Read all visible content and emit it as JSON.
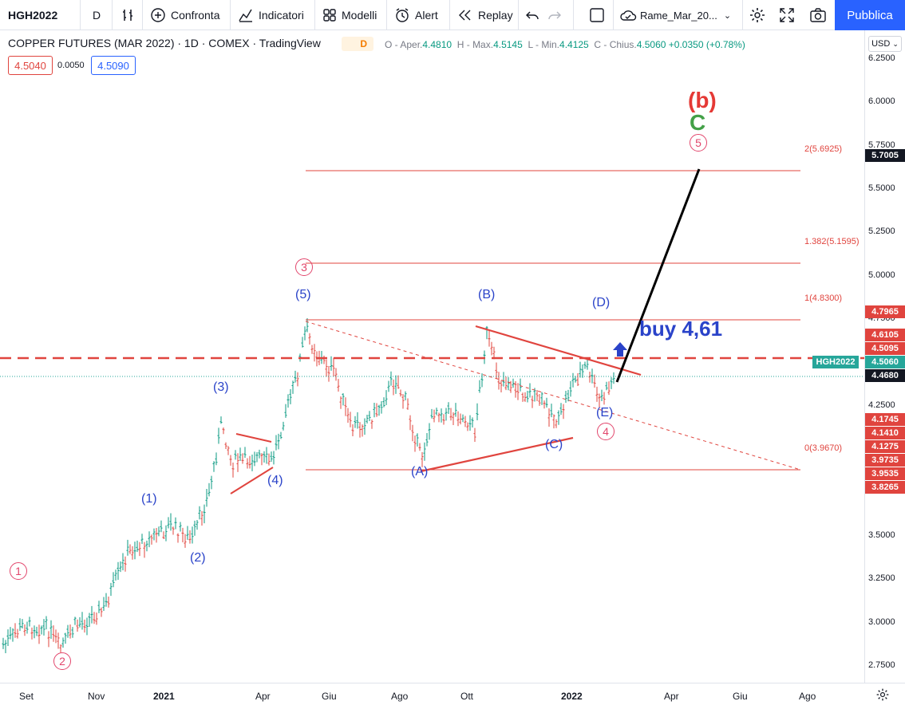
{
  "toolbar": {
    "symbol": "HGH2022",
    "interval": "D",
    "compare": "Confronta",
    "indicators": "Indicatori",
    "templates": "Modelli",
    "alert": "Alert",
    "replay": "Replay",
    "layout_name": "Rame_Mar_20...",
    "publish": "Pubblica"
  },
  "legend": {
    "title": "COPPER FUTURES (MAR 2022) · 1D · COMEX · TradingView",
    "badge": "D",
    "open_label": "O - Aper.",
    "open": "4.4810",
    "high_label": "H - Max.",
    "high": "4.5145",
    "low_label": "L - Min.",
    "low": "4.4125",
    "close_label": "C - Chius.",
    "close": "4.5060",
    "change": "+0.0350 (+0.78%)",
    "bid": "4.5040",
    "spread": "0.0050",
    "ask": "4.5090"
  },
  "currency": "USD",
  "colors": {
    "accent": "#2962ff",
    "bull": "#089981",
    "bear": "#e0443e",
    "wave_blue": "#2a43c9",
    "wave_red": "#e2466c"
  },
  "y_axis": [
    "6.2500",
    "6.0000",
    "5.7500",
    "5.5000",
    "5.2500",
    "5.0000",
    "4.7500",
    "4.2500",
    "3.7500",
    "3.5000",
    "3.2500",
    "3.0000",
    "2.7500"
  ],
  "price_tags": [
    {
      "text": "5.7005",
      "color": "#131722"
    },
    {
      "text": "4.7965",
      "color": "#e0443e"
    },
    {
      "text": "4.6105",
      "color": "#e0443e"
    },
    {
      "text": "4.5095",
      "color": "#e0443e"
    },
    {
      "text": "HGH2022",
      "color": "#26a69a"
    },
    {
      "text": "4.5060",
      "color": "#26a69a"
    },
    {
      "text": "4.4680",
      "color": "#131722"
    },
    {
      "text": "4.1745",
      "color": "#e0443e"
    },
    {
      "text": "4.1410",
      "color": "#e0443e"
    },
    {
      "text": "4.1275",
      "color": "#e0443e"
    },
    {
      "text": "3.9735",
      "color": "#e0443e"
    },
    {
      "text": "3.9535",
      "color": "#e0443e"
    },
    {
      "text": "3.8265",
      "color": "#e0443e"
    }
  ],
  "x_axis": [
    "Set",
    "Nov",
    "2021",
    "Apr",
    "Giu",
    "Ago",
    "Ott",
    "2022",
    "Apr",
    "Giu",
    "Ago"
  ],
  "fib_labels": [
    "2(5.6925)",
    "1.382(5.1595)",
    "1(4.8300)",
    "0(3.9670)"
  ],
  "waves": {
    "w1": "(1)",
    "w2": "(2)",
    "w3": "(3)",
    "w4": "(4)",
    "w5": "(5)",
    "wa": "(A)",
    "wb": "(B)",
    "wc": "(C)",
    "wd": "(D)",
    "we": "(E)",
    "c1": "1",
    "c2": "2",
    "c3": "3",
    "c4": "4",
    "c5": "5",
    "big_b": "(b)",
    "big_c": "C"
  },
  "annotation": "buy 4,61"
}
